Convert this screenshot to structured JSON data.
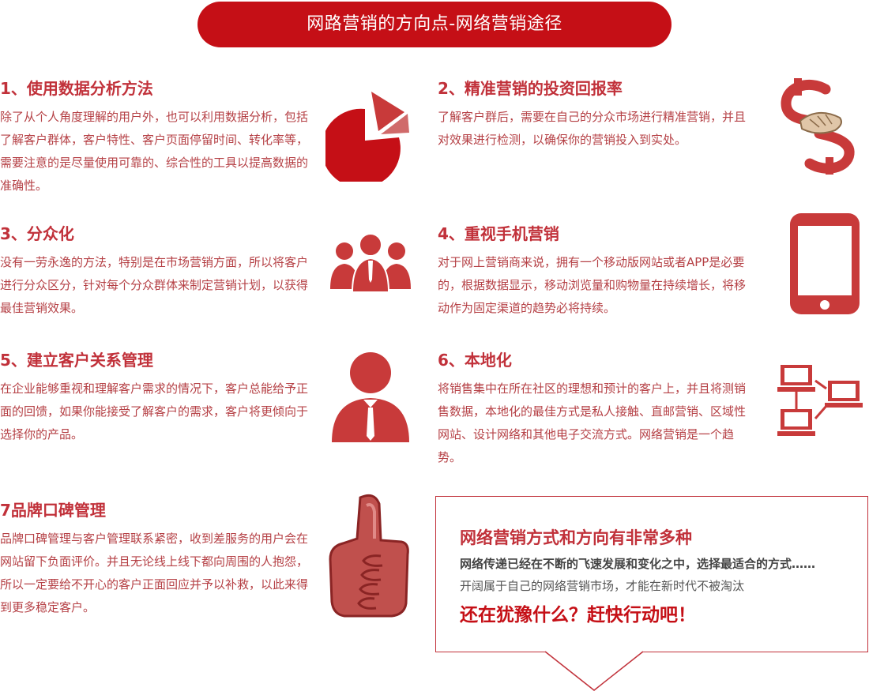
{
  "banner": {
    "title": "网路营销的方向点-网络营销途径"
  },
  "items": [
    {
      "title": "1、使用数据分析方法",
      "body": "除了从个人角度理解的用户外，也可以利用数据分析，包括了解客户群体，客户特性、客户页面停留时间、转化率等，需要注意的是尽量使用可靠的、综合性的工具以提高数据的准确性。",
      "icon": "pie-chart-icon"
    },
    {
      "title": "2、精准营销的投资回报率",
      "body": "了解客户群后，需要在自己的分众市场进行精准营销，并且对效果进行检测，以确保你的营销投入到实处。",
      "icon": "dollar-handshake-icon"
    },
    {
      "title": "3、分众化",
      "body": "没有一劳永逸的方法，特别是在市场营销方面，所以将客户进行分众区分，针对每个分众群体来制定营销计划，以获得最佳营销效果。",
      "icon": "group-people-icon"
    },
    {
      "title": "4、重视手机营销",
      "body": "对于网上营销商来说，拥有一个移动版网站或者APP是必要的，根据数据显示，移动浏览量和购物量在持续增长，将移动作为固定渠道的趋势必将持续。",
      "icon": "mobile-phone-icon"
    },
    {
      "title": "5、建立客户关系管理",
      "body": "在企业能够重视和理解客户需求的情况下，客户总能给予正面的回馈，如果你能接受了解客户的需求，客户将更倾向于选择你的产品。",
      "icon": "customer-person-icon"
    },
    {
      "title": "6、本地化",
      "body": "将销售集中在所在社区的理想和预计的客户上，并且将测销售数据，本地化的最佳方式是私人接触、直邮营销、区域性网站、设计网络和其他电子交流方式。网络营销是一个趋势。",
      "icon": "network-computers-icon"
    },
    {
      "title": "7品牌口碑管理",
      "body": "品牌口碑管理与客户管理联系紧密，收到差服务的用户会在网站留下负面评价。并且无论线上线下都向周围的人抱怨，所以一定要给不开心的客户正面回应并予以补救，以此来得到更多稳定客户。",
      "icon": "thumbs-up-icon"
    }
  ],
  "cta": {
    "title": "网络营销方式和方向有非常多种",
    "line1": "网络传递已经在不断的飞速发展和变化之中，选择最适合的方式……",
    "line2": "开阔属于自己的网络营销市场，才能在新时代不被淘汰",
    "slogan": "还在犹豫什么？赶快行动吧！"
  },
  "colors": {
    "accent": "#c50f16",
    "icon": "#c83a3a",
    "text": "#b54045"
  }
}
